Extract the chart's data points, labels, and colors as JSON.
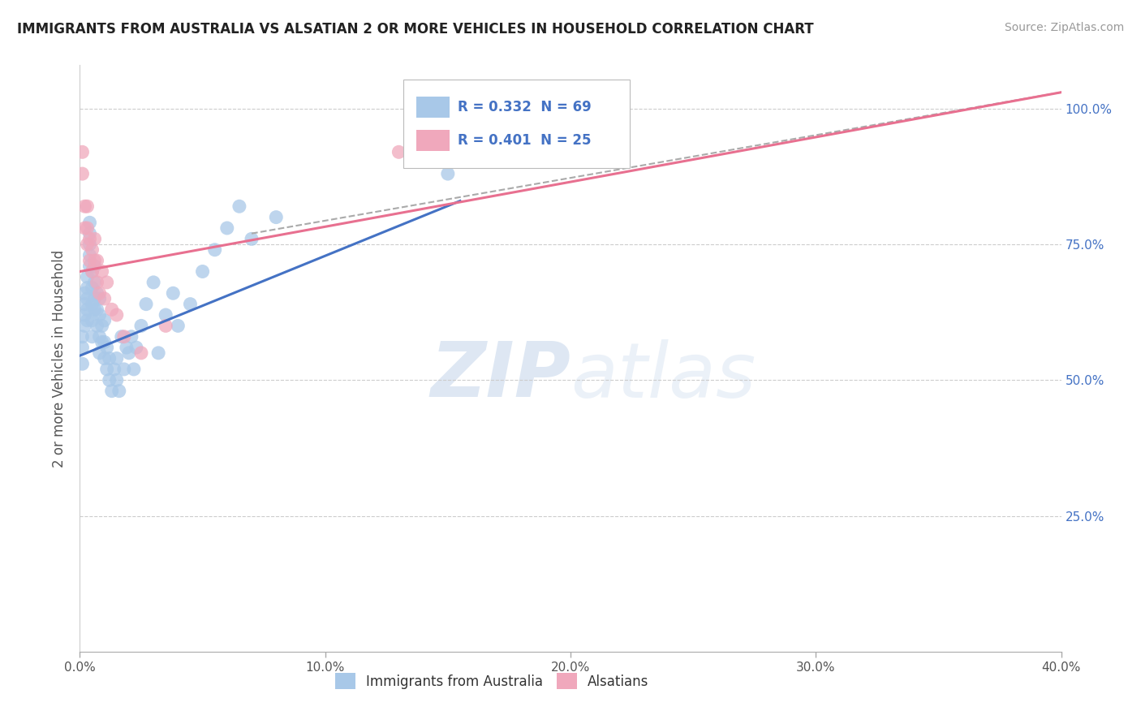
{
  "title": "IMMIGRANTS FROM AUSTRALIA VS ALSATIAN 2 OR MORE VEHICLES IN HOUSEHOLD CORRELATION CHART",
  "source": "Source: ZipAtlas.com",
  "ylabel": "2 or more Vehicles in Household",
  "xmin": 0.0,
  "xmax": 0.4,
  "ymin": 0.0,
  "ymax": 1.08,
  "xtick_vals": [
    0.0,
    0.1,
    0.2,
    0.3,
    0.4
  ],
  "xtick_labels": [
    "0.0%",
    "10.0%",
    "20.0%",
    "30.0%",
    "40.0%"
  ],
  "ytick_vals": [
    0.25,
    0.5,
    0.75,
    1.0
  ],
  "ytick_labels": [
    "25.0%",
    "50.0%",
    "75.0%",
    "100.0%"
  ],
  "blue_R": 0.332,
  "blue_N": 69,
  "pink_R": 0.401,
  "pink_N": 25,
  "blue_color": "#A8C8E8",
  "pink_color": "#F0A8BC",
  "blue_line_color": "#4472C4",
  "pink_line_color": "#E87090",
  "dashed_line_color": "#AAAAAA",
  "legend_text_color": "#4472C4",
  "watermark_zip": "ZIP",
  "watermark_atlas": "atlas",
  "blue_scatter_x": [
    0.001,
    0.001,
    0.001,
    0.002,
    0.002,
    0.002,
    0.002,
    0.003,
    0.003,
    0.003,
    0.003,
    0.003,
    0.004,
    0.004,
    0.004,
    0.004,
    0.004,
    0.005,
    0.005,
    0.005,
    0.005,
    0.005,
    0.006,
    0.006,
    0.006,
    0.006,
    0.007,
    0.007,
    0.007,
    0.008,
    0.008,
    0.008,
    0.008,
    0.009,
    0.009,
    0.01,
    0.01,
    0.01,
    0.011,
    0.011,
    0.012,
    0.012,
    0.013,
    0.014,
    0.015,
    0.015,
    0.016,
    0.017,
    0.018,
    0.019,
    0.02,
    0.021,
    0.022,
    0.023,
    0.025,
    0.027,
    0.03,
    0.032,
    0.035,
    0.038,
    0.04,
    0.045,
    0.05,
    0.055,
    0.06,
    0.065,
    0.07,
    0.08,
    0.15
  ],
  "blue_scatter_y": [
    0.53,
    0.56,
    0.58,
    0.6,
    0.62,
    0.64,
    0.66,
    0.61,
    0.63,
    0.65,
    0.67,
    0.69,
    0.71,
    0.73,
    0.75,
    0.77,
    0.79,
    0.58,
    0.61,
    0.64,
    0.67,
    0.7,
    0.63,
    0.65,
    0.68,
    0.71,
    0.6,
    0.63,
    0.66,
    0.55,
    0.58,
    0.62,
    0.65,
    0.57,
    0.6,
    0.54,
    0.57,
    0.61,
    0.52,
    0.56,
    0.5,
    0.54,
    0.48,
    0.52,
    0.5,
    0.54,
    0.48,
    0.58,
    0.52,
    0.56,
    0.55,
    0.58,
    0.52,
    0.56,
    0.6,
    0.64,
    0.68,
    0.55,
    0.62,
    0.66,
    0.6,
    0.64,
    0.7,
    0.74,
    0.78,
    0.82,
    0.76,
    0.8,
    0.88
  ],
  "pink_scatter_x": [
    0.001,
    0.001,
    0.002,
    0.002,
    0.003,
    0.003,
    0.003,
    0.004,
    0.004,
    0.005,
    0.005,
    0.006,
    0.006,
    0.007,
    0.007,
    0.008,
    0.009,
    0.01,
    0.011,
    0.013,
    0.015,
    0.018,
    0.025,
    0.035,
    0.13
  ],
  "pink_scatter_y": [
    0.88,
    0.92,
    0.78,
    0.82,
    0.75,
    0.78,
    0.82,
    0.72,
    0.76,
    0.7,
    0.74,
    0.72,
    0.76,
    0.68,
    0.72,
    0.66,
    0.7,
    0.65,
    0.68,
    0.63,
    0.62,
    0.58,
    0.55,
    0.6,
    0.92
  ],
  "blue_line_x0": 0.0,
  "blue_line_y0": 0.545,
  "blue_line_x1": 0.155,
  "blue_line_y1": 0.83,
  "pink_line_x0": 0.0,
  "pink_line_y0": 0.7,
  "pink_line_x1": 0.4,
  "pink_line_y1": 1.03,
  "dash_line_x0": 0.07,
  "dash_line_y0": 0.77,
  "dash_line_x1": 0.4,
  "dash_line_y1": 1.03
}
